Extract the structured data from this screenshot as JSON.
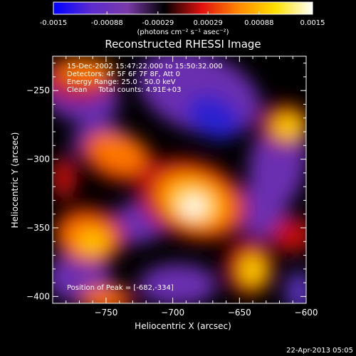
{
  "colorbar": {
    "tick_labels": [
      "-0.0015",
      "-0.00088",
      "-0.00029",
      "0.00029",
      "0.00088",
      "0.0015"
    ],
    "unit_label": "(photons cm⁻² s⁻¹ asec⁻²)",
    "range": [
      -0.0015,
      0.0015
    ],
    "palette": [
      "#0000ff",
      "#5a2bd0",
      "#7a3aa8",
      "#000000",
      "#e01010",
      "#ff8800",
      "#ffe000",
      "#ffffff"
    ]
  },
  "chart_data": {
    "type": "heatmap",
    "title": "Reconstructed RHESSI Image",
    "xlabel": "Heliocentric X (arcsec)",
    "ylabel": "Heliocentric Y (arcsec)",
    "xlim": [
      -790,
      -600
    ],
    "ylim": [
      -405,
      -225
    ],
    "x_ticks": [
      -750,
      -700,
      -650,
      -600
    ],
    "x_tick_labels": [
      "−750",
      "−700",
      "−650",
      "−600"
    ],
    "y_ticks": [
      -400,
      -350,
      -300,
      -250
    ],
    "y_tick_labels": [
      "−400",
      "−350",
      "−300",
      "−250"
    ],
    "annotations": [
      "15-Dec-2002 15:47:22.000 to 15:50:32.000",
      "Detectors: 4F 5F 6F 7F 8F, Att 0",
      "Energy Range: 25.0 - 50.0 keV",
      "Clean     Total counts: 4.91E+03"
    ],
    "peak_label": "Position of Peak = [-682,-334]",
    "peak": [
      -682,
      -334
    ]
  },
  "footer": {
    "timestamp": "22-Apr-2013 05:05"
  }
}
